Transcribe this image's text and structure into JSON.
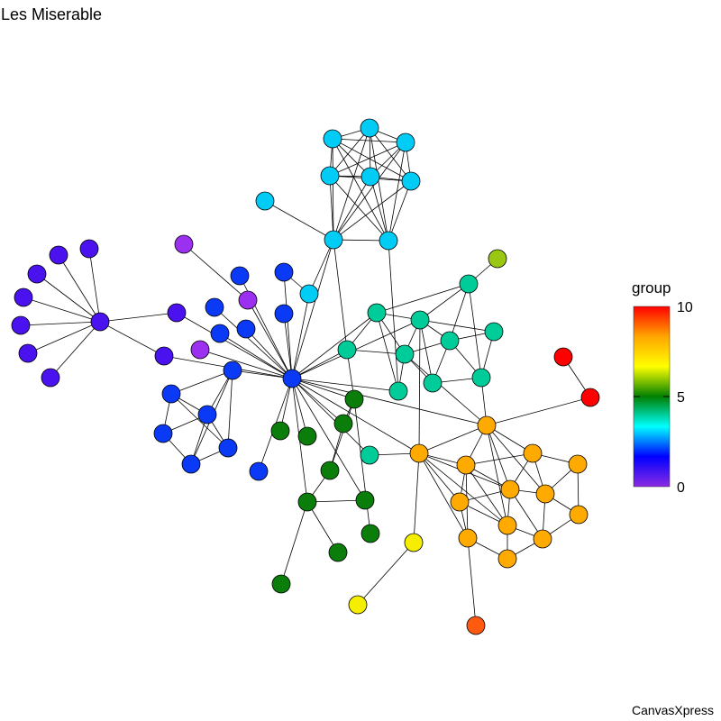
{
  "title": "Les Miserable",
  "credit": "CanvasXpress",
  "legend": {
    "title": "group",
    "min_label": "0",
    "mid_label": "5",
    "max_label": "10",
    "range": [
      0,
      10
    ],
    "gradient": [
      "#8a2be2",
      "#0000ff",
      "#00ffff",
      "#008000",
      "#ffff00",
      "#ffa500",
      "#ff0000"
    ]
  },
  "group_colors": {
    "0": "#9b30f0",
    "1": "#4a12ee",
    "2": "#0a3af5",
    "3": "#00ccf5",
    "4": "#00cc99",
    "5": "#0a7d0a",
    "6": "#99c712",
    "7": "#f5ee00",
    "8": "#ffaa00",
    "9": "#ff5a10",
    "10": "#ff0000"
  },
  "nodes": [
    {
      "group": 1
    },
    {
      "group": 1
    },
    {
      "group": 1
    },
    {
      "group": 1
    },
    {
      "group": 1
    },
    {
      "group": 1
    },
    {
      "group": 1
    },
    {
      "group": 1
    },
    {
      "group": 1
    },
    {
      "group": 1
    },
    {
      "group": 0
    },
    {
      "group": 0
    },
    {
      "group": 0
    },
    {
      "group": 2
    },
    {
      "group": 2
    },
    {
      "group": 2
    },
    {
      "group": 2
    },
    {
      "group": 2
    },
    {
      "group": 2
    },
    {
      "group": 2
    },
    {
      "group": 2
    },
    {
      "group": 2
    },
    {
      "group": 2
    },
    {
      "group": 2
    },
    {
      "group": 2
    },
    {
      "group": 2
    },
    {
      "group": 2
    },
    {
      "group": 3
    },
    {
      "group": 3
    },
    {
      "group": 3
    },
    {
      "group": 3
    },
    {
      "group": 3
    },
    {
      "group": 3
    },
    {
      "group": 3
    },
    {
      "group": 3
    },
    {
      "group": 3
    },
    {
      "group": 3
    },
    {
      "group": 4
    },
    {
      "group": 4
    },
    {
      "group": 4
    },
    {
      "group": 4
    },
    {
      "group": 4
    },
    {
      "group": 4
    },
    {
      "group": 4
    },
    {
      "group": 4
    },
    {
      "group": 4
    },
    {
      "group": 4
    },
    {
      "group": 4
    },
    {
      "group": 5
    },
    {
      "group": 5
    },
    {
      "group": 5
    },
    {
      "group": 5
    },
    {
      "group": 5
    },
    {
      "group": 5
    },
    {
      "group": 5
    },
    {
      "group": 5
    },
    {
      "group": 5
    },
    {
      "group": 5
    },
    {
      "group": 6
    },
    {
      "group": 7
    },
    {
      "group": 7
    },
    {
      "group": 8
    },
    {
      "group": 8
    },
    {
      "group": 8
    },
    {
      "group": 8
    },
    {
      "group": 8
    },
    {
      "group": 8
    },
    {
      "group": 8
    },
    {
      "group": 8
    },
    {
      "group": 8
    },
    {
      "group": 8
    },
    {
      "group": 8
    },
    {
      "group": 8
    },
    {
      "group": 8
    },
    {
      "group": 9
    },
    {
      "group": 10
    },
    {
      "group": 10
    }
  ],
  "edges": [
    [
      0,
      1
    ],
    [
      0,
      2
    ],
    [
      0,
      3
    ],
    [
      0,
      4
    ],
    [
      0,
      5
    ],
    [
      0,
      6
    ],
    [
      0,
      7
    ],
    [
      0,
      8
    ],
    [
      0,
      9
    ],
    [
      8,
      20
    ],
    [
      9,
      20
    ],
    [
      12,
      20
    ],
    [
      10,
      11
    ],
    [
      11,
      20
    ],
    [
      13,
      20
    ],
    [
      14,
      20
    ],
    [
      15,
      20
    ],
    [
      16,
      20
    ],
    [
      17,
      20
    ],
    [
      18,
      20
    ],
    [
      19,
      20
    ],
    [
      21,
      22
    ],
    [
      21,
      23
    ],
    [
      21,
      19
    ],
    [
      22,
      23
    ],
    [
      22,
      24
    ],
    [
      22,
      25
    ],
    [
      23,
      25
    ],
    [
      24,
      25
    ],
    [
      19,
      24
    ],
    [
      19,
      25
    ],
    [
      19,
      22
    ],
    [
      21,
      24
    ],
    [
      26,
      20
    ],
    [
      33,
      34
    ],
    [
      14,
      36
    ],
    [
      36,
      20
    ],
    [
      34,
      36
    ],
    [
      27,
      28
    ],
    [
      27,
      29
    ],
    [
      27,
      30
    ],
    [
      27,
      31
    ],
    [
      27,
      32
    ],
    [
      28,
      29
    ],
    [
      28,
      30
    ],
    [
      28,
      31
    ],
    [
      28,
      32
    ],
    [
      29,
      30
    ],
    [
      29,
      31
    ],
    [
      29,
      32
    ],
    [
      30,
      31
    ],
    [
      30,
      32
    ],
    [
      31,
      32
    ],
    [
      27,
      34
    ],
    [
      28,
      34
    ],
    [
      29,
      34
    ],
    [
      30,
      34
    ],
    [
      31,
      34
    ],
    [
      32,
      34
    ],
    [
      27,
      35
    ],
    [
      28,
      35
    ],
    [
      29,
      35
    ],
    [
      30,
      35
    ],
    [
      31,
      35
    ],
    [
      32,
      35
    ],
    [
      34,
      35
    ],
    [
      34,
      20
    ],
    [
      34,
      40
    ],
    [
      35,
      44
    ],
    [
      37,
      38
    ],
    [
      37,
      39
    ],
    [
      37,
      42
    ],
    [
      37,
      46
    ],
    [
      38,
      39
    ],
    [
      38,
      40
    ],
    [
      38,
      41
    ],
    [
      38,
      44
    ],
    [
      39,
      41
    ],
    [
      39,
      42
    ],
    [
      39,
      43
    ],
    [
      39,
      45
    ],
    [
      40,
      41
    ],
    [
      40,
      20
    ],
    [
      41,
      42
    ],
    [
      41,
      44
    ],
    [
      41,
      45
    ],
    [
      42,
      43
    ],
    [
      42,
      45
    ],
    [
      42,
      46
    ],
    [
      43,
      46
    ],
    [
      45,
      46
    ],
    [
      44,
      20
    ],
    [
      38,
      20
    ],
    [
      39,
      20
    ],
    [
      40,
      48
    ],
    [
      47,
      20
    ],
    [
      47,
      62
    ],
    [
      48,
      20
    ],
    [
      48,
      51
    ],
    [
      48,
      52
    ],
    [
      49,
      20
    ],
    [
      50,
      20
    ],
    [
      51,
      20
    ],
    [
      52,
      53
    ],
    [
      53,
      54
    ],
    [
      53,
      55
    ],
    [
      53,
      57
    ],
    [
      53,
      20
    ],
    [
      54,
      20
    ],
    [
      56,
      48
    ],
    [
      51,
      52
    ],
    [
      58,
      37
    ],
    [
      59,
      60
    ],
    [
      59,
      62
    ],
    [
      61,
      20
    ],
    [
      61,
      62
    ],
    [
      61,
      63
    ],
    [
      61,
      64
    ],
    [
      61,
      66
    ],
    [
      61,
      67
    ],
    [
      61,
      69
    ],
    [
      62,
      63
    ],
    [
      62,
      68
    ],
    [
      62,
      66
    ],
    [
      62,
      69
    ],
    [
      62,
      71
    ],
    [
      62,
      20
    ],
    [
      62,
      39
    ],
    [
      63,
      64
    ],
    [
      63,
      66
    ],
    [
      63,
      68
    ],
    [
      63,
      69
    ],
    [
      63,
      71
    ],
    [
      64,
      65
    ],
    [
      64,
      66
    ],
    [
      64,
      67
    ],
    [
      65,
      67
    ],
    [
      65,
      70
    ],
    [
      66,
      67
    ],
    [
      66,
      68
    ],
    [
      66,
      69
    ],
    [
      66,
      72
    ],
    [
      67,
      70
    ],
    [
      67,
      72
    ],
    [
      68,
      69
    ],
    [
      68,
      71
    ],
    [
      69,
      72
    ],
    [
      69,
      73
    ],
    [
      70,
      72
    ],
    [
      71,
      73
    ],
    [
      72,
      73
    ],
    [
      71,
      74
    ],
    [
      75,
      76
    ],
    [
      76,
      61
    ],
    [
      61,
      41
    ],
    [
      61,
      46
    ]
  ]
}
